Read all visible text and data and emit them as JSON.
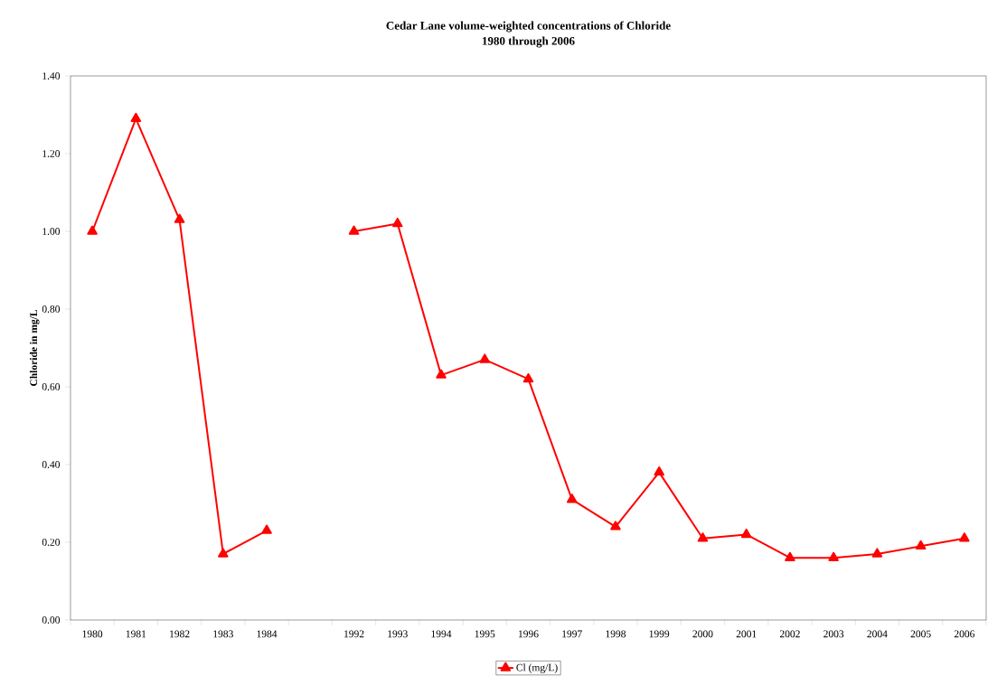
{
  "chart_data": {
    "type": "line",
    "title": "Cedar Lane volume-weighted concentrations of Chloride",
    "subtitle": "1980 through 2006",
    "ylabel": "Chloride in mg/L",
    "categories": [
      "1980",
      "1981",
      "1982",
      "1983",
      "1984",
      null,
      "1992",
      "1993",
      "1994",
      "1995",
      "1996",
      "1997",
      "1998",
      "1999",
      "2000",
      "2001",
      "2002",
      "2003",
      "2004",
      "2005",
      "2006"
    ],
    "series": [
      {
        "name": "Cl (mg/L)",
        "color": "#ff0000",
        "values": [
          1.0,
          1.29,
          1.03,
          0.17,
          0.23,
          null,
          1.0,
          1.02,
          0.63,
          0.67,
          0.62,
          0.31,
          0.24,
          0.38,
          0.21,
          0.22,
          0.16,
          0.16,
          0.17,
          0.19,
          0.21
        ]
      }
    ],
    "ylim": [
      0,
      1.4
    ],
    "yticks": [
      {
        "value": 0,
        "label": "0.00"
      },
      {
        "value": 0.2,
        "label": "0.20"
      },
      {
        "value": 0.4,
        "label": "0.40"
      },
      {
        "value": 0.6,
        "label": "0.60"
      },
      {
        "value": 0.8,
        "label": "0.80"
      },
      {
        "value": 1.0,
        "label": "1.00"
      },
      {
        "value": 1.2,
        "label": "1.20"
      },
      {
        "value": 1.4,
        "label": "1.40"
      }
    ],
    "grid": false,
    "legend": "bottom",
    "marker": "triangle",
    "line_style": "solid"
  }
}
